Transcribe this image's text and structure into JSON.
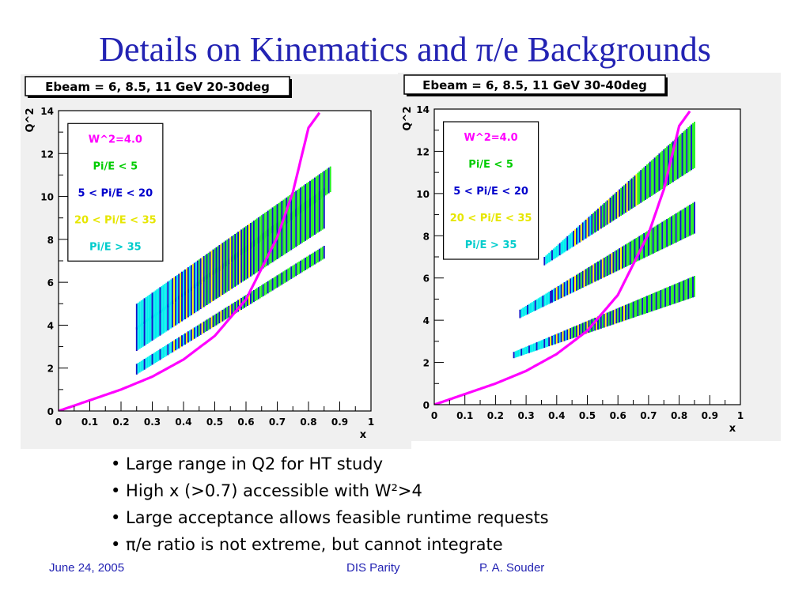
{
  "slide": {
    "title": "Details on Kinematics and π/e Backgrounds",
    "bullets": [
      "• Large range in Q2 for HT study",
      "• High x (>0.7) accessible with W²>4",
      "• Large acceptance allows feasible runtime requests",
      "• π/e ratio is not extreme, but cannot integrate"
    ],
    "footer": {
      "date": "June 24, 2005",
      "center": "DIS Parity",
      "author": "P. A. Souder"
    }
  },
  "colors": {
    "title": "#2323b3",
    "w2_curve": "#ff00ff",
    "pi_lt_5": "#22ee22",
    "pi_5_20": "#1010c8",
    "pi_20_35": "#ffff00",
    "pi_gt_35": "#00eeee",
    "legend_w2": "#ff00ff",
    "legend_lt5": "#00cc00",
    "legend_5_20": "#0000cc",
    "legend_20_35": "#e6e600",
    "legend_gt35": "#00cccc"
  },
  "chart_data": [
    {
      "type": "area",
      "title": "Ebeam = 6, 8.5, 11 GeV 20-30deg",
      "xlabel": "x",
      "ylabel": "Q^2",
      "xlim": [
        0,
        1
      ],
      "ylim": [
        0,
        14
      ],
      "xticks": [
        "0",
        "0.1",
        "0.2",
        "0.3",
        "0.4",
        "0.5",
        "0.6",
        "0.7",
        "0.8",
        "0.9",
        "1"
      ],
      "yticks": [
        "0",
        "2",
        "4",
        "6",
        "8",
        "10",
        "12",
        "14"
      ],
      "legend": [
        "W^2=4.0",
        "Pi/E < 5",
        "5 < Pi/E < 20",
        "20 < Pi/E < 35",
        "Pi/E > 35"
      ],
      "legend_position": "top-left",
      "w2_curve": {
        "x": [
          0,
          0.1,
          0.2,
          0.3,
          0.4,
          0.5,
          0.6,
          0.7,
          0.75,
          0.8,
          0.84
        ],
        "y": [
          0,
          0.5,
          1.0,
          1.6,
          2.4,
          3.5,
          5.2,
          8.1,
          10.2,
          13.2,
          14.0
        ]
      },
      "bands": [
        {
          "x": [
            0.25,
            0.85
          ],
          "lower": [
            1.7,
            7.1
          ],
          "upper": [
            2.2,
            7.7
          ]
        },
        {
          "x": [
            0.25,
            0.85
          ],
          "lower": [
            2.8,
            8.5
          ],
          "upper": [
            3.9,
            10.4
          ]
        },
        {
          "x": [
            0.25,
            0.87
          ],
          "lower": [
            3.8,
            10.2
          ],
          "upper": [
            5.0,
            11.4
          ]
        }
      ]
    },
    {
      "type": "area",
      "title": "Ebeam = 6, 8.5, 11 GeV 30-40deg",
      "xlabel": "x",
      "ylabel": "Q^2",
      "xlim": [
        0,
        1
      ],
      "ylim": [
        0,
        14
      ],
      "xticks": [
        "0",
        "0.1",
        "0.2",
        "0.3",
        "0.4",
        "0.5",
        "0.6",
        "0.7",
        "0.8",
        "0.9",
        "1"
      ],
      "yticks": [
        "0",
        "2",
        "4",
        "6",
        "8",
        "10",
        "12",
        "14"
      ],
      "legend": [
        "W^2=4.0",
        "Pi/E < 5",
        "5 < Pi/E < 20",
        "20 < Pi/E < 35",
        "Pi/E > 35"
      ],
      "legend_position": "top-left",
      "w2_curve": {
        "x": [
          0,
          0.1,
          0.2,
          0.3,
          0.4,
          0.5,
          0.6,
          0.7,
          0.75,
          0.8,
          0.84
        ],
        "y": [
          0,
          0.5,
          1.0,
          1.6,
          2.4,
          3.5,
          5.2,
          8.1,
          10.2,
          13.2,
          14.0
        ]
      },
      "bands": [
        {
          "x": [
            0.26,
            0.85
          ],
          "lower": [
            2.2,
            5.1
          ],
          "upper": [
            2.5,
            6.1
          ]
        },
        {
          "x": [
            0.28,
            0.85
          ],
          "lower": [
            4.1,
            8.1
          ],
          "upper": [
            4.5,
            9.6
          ]
        },
        {
          "x": [
            0.36,
            0.85
          ],
          "lower": [
            6.6,
            11.2
          ],
          "upper": [
            7.0,
            13.4
          ]
        }
      ]
    }
  ]
}
